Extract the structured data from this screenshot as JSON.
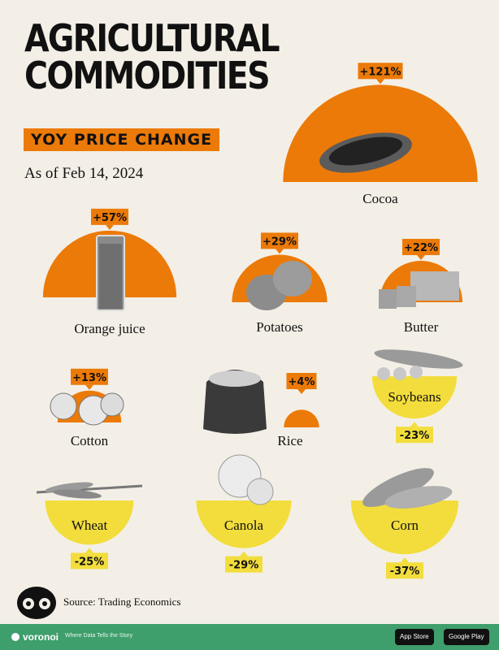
{
  "title_lines": [
    "AGRICULTURAL",
    "COMMODITIES"
  ],
  "subtitle": "YOY PRICE CHANGE",
  "as_of": "As of Feb 14, 2024",
  "source": "Source: Trading Economics",
  "footer": {
    "brand": "voronoi",
    "tagline": "Where Data Tells the Story",
    "app_store": "App Store",
    "google_play": "Google Play"
  },
  "colors": {
    "positive": "#ec7a08",
    "negative": "#f2dd3c",
    "background": "#f3efe6",
    "footer": "#3e9e6c"
  },
  "chart_data": {
    "type": "proportional-semicircle",
    "title": "AGRICULTURAL COMMODITIES",
    "subtitle": "YOY PRICE CHANGE",
    "items": [
      {
        "name": "Cocoa",
        "value": 121,
        "label": "+121%"
      },
      {
        "name": "Orange juice",
        "value": 57,
        "label": "+57%"
      },
      {
        "name": "Potatoes",
        "value": 29,
        "label": "+29%"
      },
      {
        "name": "Butter",
        "value": 22,
        "label": "+22%"
      },
      {
        "name": "Cotton",
        "value": 13,
        "label": "+13%"
      },
      {
        "name": "Rice",
        "value": 4,
        "label": "+4%"
      },
      {
        "name": "Soybeans",
        "value": -23,
        "label": "-23%"
      },
      {
        "name": "Wheat",
        "value": -25,
        "label": "-25%"
      },
      {
        "name": "Canola",
        "value": -29,
        "label": "-29%"
      },
      {
        "name": "Corn",
        "value": -37,
        "label": "-37%"
      }
    ]
  }
}
